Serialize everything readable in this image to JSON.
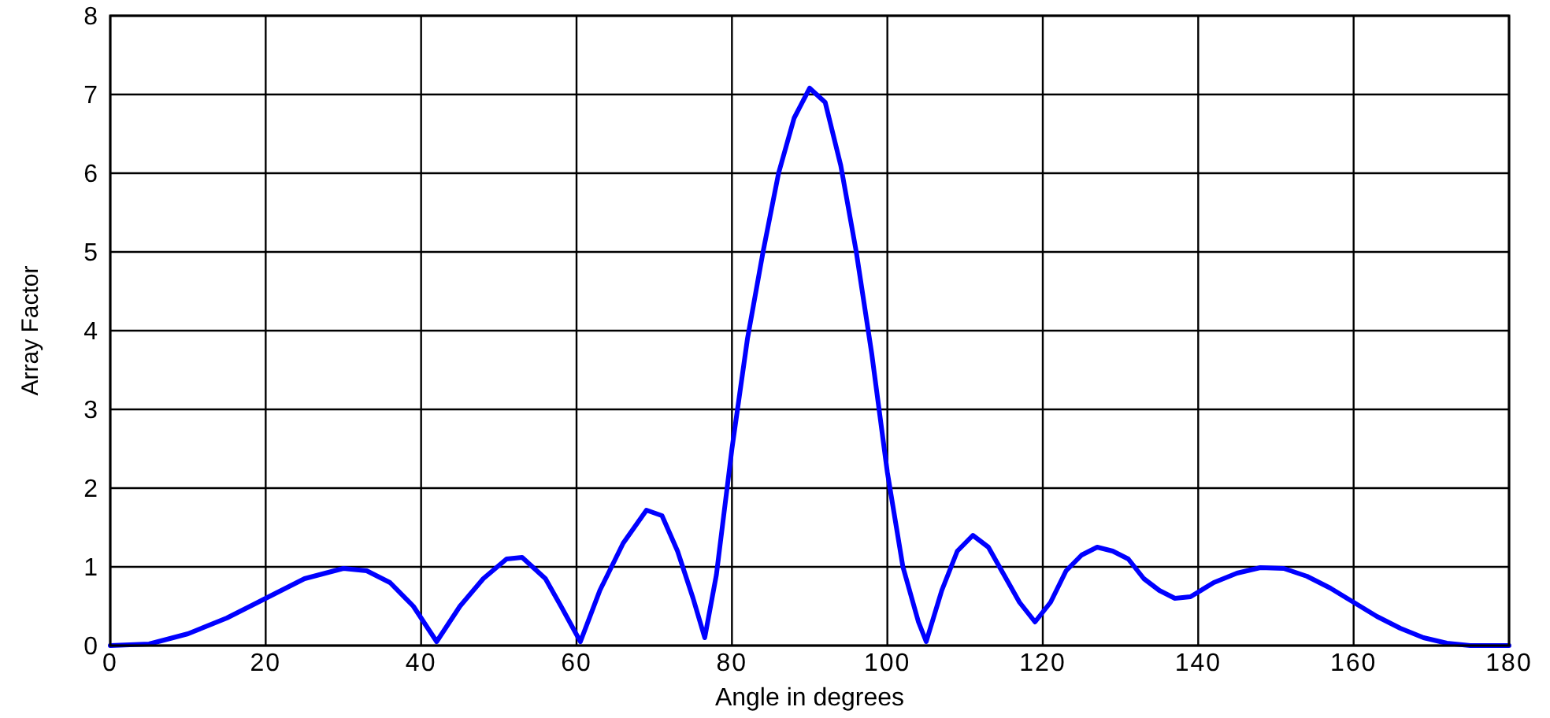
{
  "chart_data": {
    "type": "line",
    "xlabel": "Angle in degrees",
    "ylabel": "Array Factor",
    "xlim": [
      0,
      180
    ],
    "xticks": [
      0,
      20,
      40,
      60,
      80,
      100,
      120,
      140,
      160,
      180
    ],
    "ylim": [
      0,
      8
    ],
    "yticks": [
      0,
      1,
      2,
      3,
      4,
      5,
      6,
      7,
      8
    ],
    "grid": true,
    "line_style": "solid",
    "marker": "none",
    "series": [
      {
        "color": "#0000ff",
        "x": [
          0,
          5,
          10,
          15,
          20,
          25,
          30,
          33,
          36,
          39,
          42,
          45,
          48,
          51,
          53,
          56,
          58,
          60.5,
          63,
          66,
          69,
          71,
          73,
          75,
          76.5,
          78,
          80,
          82,
          84,
          86,
          88,
          90,
          92,
          94,
          96,
          98,
          100,
          102,
          104,
          105,
          107,
          109,
          111,
          113,
          115,
          117,
          119,
          121,
          123,
          125,
          127,
          129,
          131,
          133,
          135,
          137,
          139,
          142,
          145,
          148,
          151,
          154,
          157,
          160,
          163,
          166,
          169,
          172,
          175,
          180
        ],
        "values": [
          0,
          0.02,
          0.15,
          0.35,
          0.6,
          0.85,
          0.98,
          0.95,
          0.8,
          0.5,
          0.05,
          0.5,
          0.85,
          1.1,
          1.12,
          0.85,
          0.5,
          0.05,
          0.7,
          1.3,
          1.72,
          1.65,
          1.2,
          0.6,
          0.1,
          0.9,
          2.5,
          3.9,
          5.0,
          6.0,
          6.7,
          7.08,
          6.9,
          6.1,
          5.0,
          3.7,
          2.2,
          1.0,
          0.3,
          0.05,
          0.7,
          1.2,
          1.4,
          1.25,
          0.9,
          0.55,
          0.3,
          0.55,
          0.95,
          1.15,
          1.25,
          1.2,
          1.1,
          0.85,
          0.7,
          0.6,
          0.62,
          0.8,
          0.92,
          0.99,
          0.98,
          0.88,
          0.73,
          0.55,
          0.37,
          0.22,
          0.1,
          0.03,
          0,
          0
        ]
      }
    ]
  }
}
